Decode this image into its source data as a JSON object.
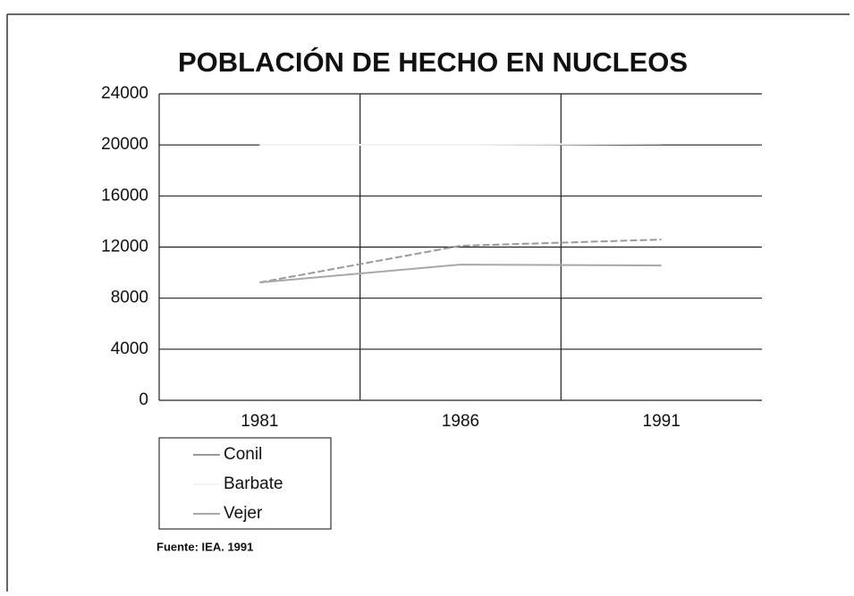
{
  "chart_data": {
    "type": "line",
    "title": "POBLACIÓN DE HECHO EN NUCLEOS",
    "categories": [
      "1981",
      "1986",
      "1991"
    ],
    "series": [
      {
        "name": "Conil",
        "color": "#9a9a9a",
        "values": [
          9230,
          12100,
          12590
        ]
      },
      {
        "name": "Barbate",
        "color": "#f2f2f2",
        "values": [
          20000,
          20000,
          20100
        ]
      },
      {
        "name": "Vejer",
        "color": "#a8a8a8",
        "values": [
          9230,
          10630,
          10560
        ]
      }
    ],
    "ylim": [
      0,
      24000
    ],
    "yticks": [
      0,
      4000,
      8000,
      12000,
      16000,
      20000,
      24000
    ],
    "grid": true,
    "legend": "bottom-left",
    "source": "Fuente: IEA. 1991"
  }
}
